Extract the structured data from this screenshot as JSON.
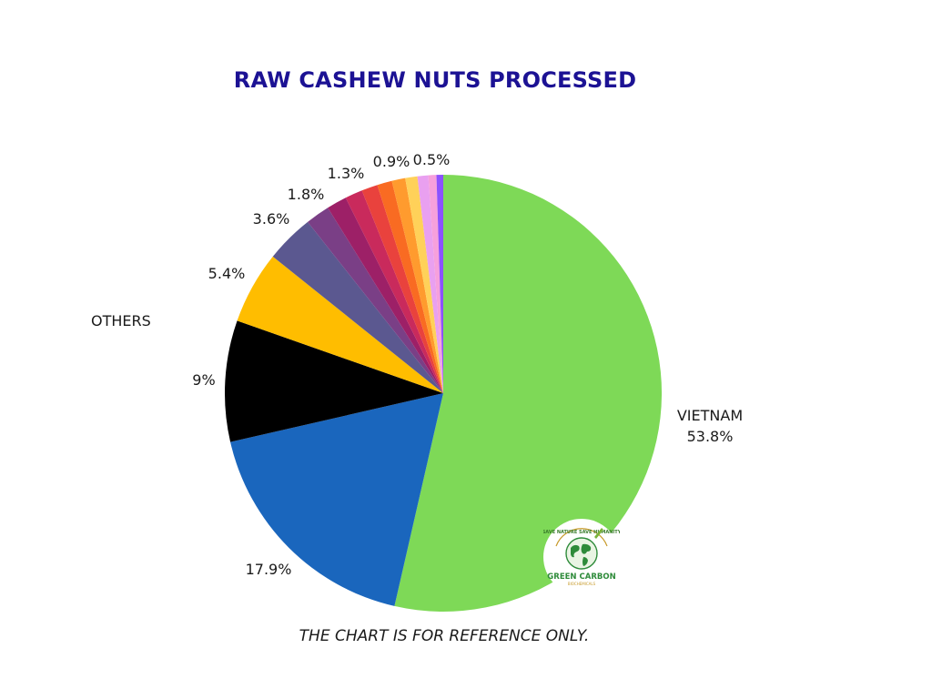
{
  "chart_data": {
    "type": "pie",
    "title": "RAW CASHEW NUTS PROCESSED",
    "note": "THE CHART IS FOR REFERENCE ONLY.",
    "start_angle_deg": 0,
    "direction": "clockwise",
    "slices": [
      {
        "label": "VIETNAM",
        "value": 53.8,
        "value_text": "53.8%",
        "color": "#7ed957"
      },
      {
        "label": "",
        "value": 17.9,
        "value_text": "17.9%",
        "color": "#1a66bd"
      },
      {
        "label": "",
        "value": 9.0,
        "value_text": "9%",
        "color": "#000000"
      },
      {
        "label": "",
        "value": 5.4,
        "value_text": "5.4%",
        "color": "#ffbd00"
      },
      {
        "label": "",
        "value": 3.6,
        "value_text": "3.6%",
        "color": "#5b5890"
      },
      {
        "label": "",
        "value": 1.8,
        "value_text": "1.8%",
        "color": "#7a3f86"
      },
      {
        "label": "",
        "value": 1.5,
        "value_text": "",
        "color": "#9d2067"
      },
      {
        "label": "",
        "value": 1.3,
        "value_text": "1.3%",
        "color": "#c92a5c"
      },
      {
        "label": "",
        "value": 1.2,
        "value_text": "",
        "color": "#e9423d"
      },
      {
        "label": "",
        "value": 1.1,
        "value_text": "",
        "color": "#f96b22"
      },
      {
        "label": "",
        "value": 1.0,
        "value_text": "",
        "color": "#ff9b2e"
      },
      {
        "label": "",
        "value": 0.9,
        "value_text": "0.9%",
        "color": "#ffd159"
      },
      {
        "label": "",
        "value": 0.8,
        "value_text": "",
        "color": "#e9a0f0"
      },
      {
        "label": "",
        "value": 0.6,
        "value_text": "",
        "color": "#f6a0dc"
      },
      {
        "label": "",
        "value": 0.5,
        "value_text": "0.5%",
        "color": "#8c52ff"
      }
    ],
    "others_label": "OTHERS"
  },
  "logo": {
    "top_text": "SAVE NATURE SAVE HUMANITY",
    "name": "GREEN CARBON",
    "sub_text": "BIOCHEMICALS"
  }
}
